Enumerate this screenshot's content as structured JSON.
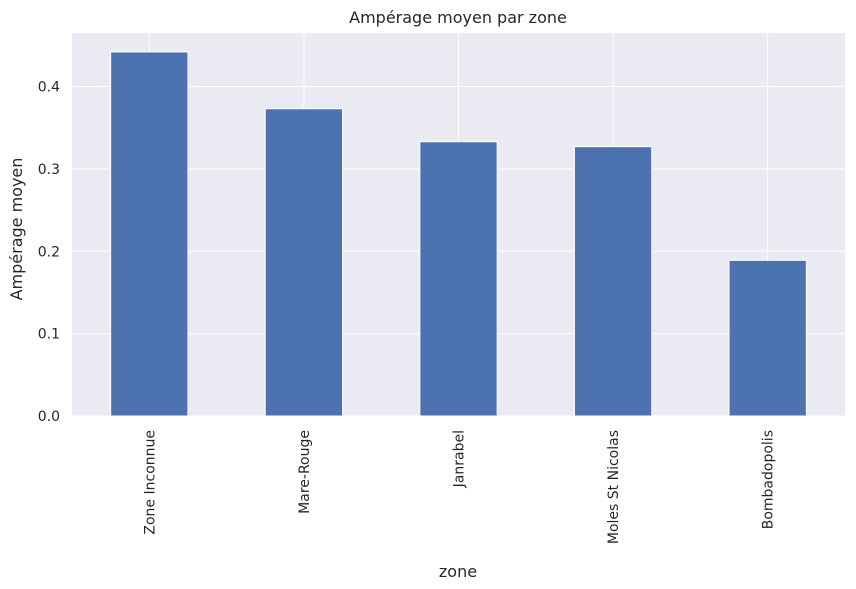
{
  "chart_data": {
    "type": "bar",
    "title": "Ampérage moyen par zone",
    "xlabel": "zone",
    "ylabel": "Ampérage moyen",
    "categories": [
      "Zone Inconnue",
      "Mare-Rouge",
      "Janrabel",
      "Moles St Nicolas",
      "Bombadopolis"
    ],
    "values": [
      0.442,
      0.373,
      0.333,
      0.327,
      0.189
    ],
    "ylim": [
      0,
      0.465
    ],
    "yticks": [
      0.0,
      0.1,
      0.2,
      0.3,
      0.4
    ],
    "ytick_labels": [
      "0.0",
      "0.1",
      "0.2",
      "0.3",
      "0.4"
    ],
    "grid": true,
    "colors": {
      "bar": "#4c72b0",
      "plot_background": "#eaeaf2",
      "grid": "#ffffff",
      "text": "#262626"
    }
  }
}
